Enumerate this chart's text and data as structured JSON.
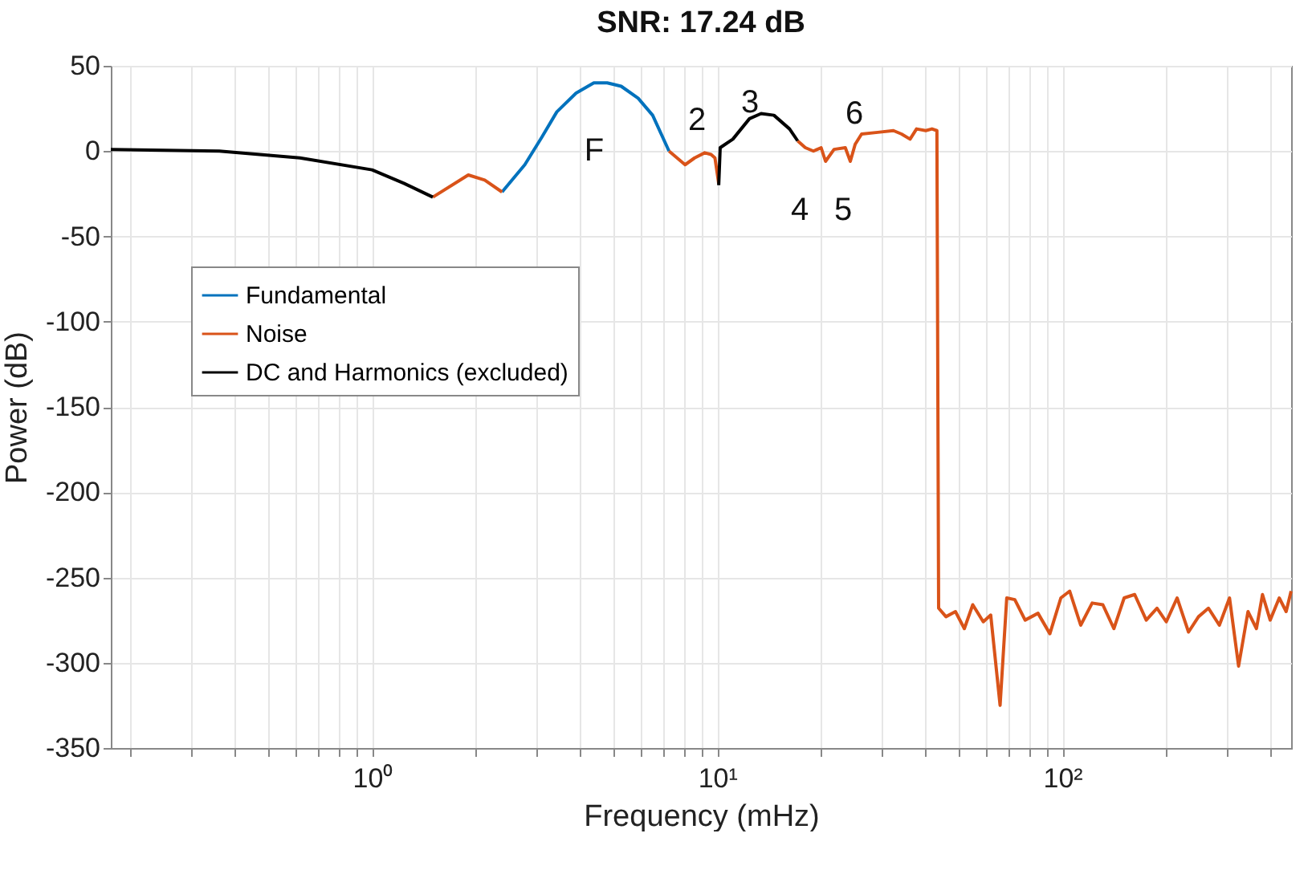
{
  "chart_data": {
    "type": "line",
    "title": "SNR:  17.24 dB",
    "xlabel": "Frequency (mHz)",
    "ylabel": "Power (dB)",
    "log": "x",
    "grid": true,
    "legend": "top left",
    "line_style": "solid",
    "marker": "none",
    "xlim": [
      0.175,
      460
    ],
    "ylim": [
      -350,
      50
    ],
    "xticks": [
      {
        "value": 0.2,
        "label": null
      },
      {
        "value": 0.3,
        "label": null
      },
      {
        "value": 0.4,
        "label": null
      },
      {
        "value": 0.5,
        "label": null
      },
      {
        "value": 0.6,
        "label": null
      },
      {
        "value": 0.7,
        "label": null
      },
      {
        "value": 0.8,
        "label": null
      },
      {
        "value": 0.9,
        "label": null
      },
      {
        "value": 1,
        "label": "10⁰"
      },
      {
        "value": 2,
        "label": null
      },
      {
        "value": 3,
        "label": null
      },
      {
        "value": 4,
        "label": null
      },
      {
        "value": 5,
        "label": null
      },
      {
        "value": 6,
        "label": null
      },
      {
        "value": 7,
        "label": null
      },
      {
        "value": 8,
        "label": null
      },
      {
        "value": 9,
        "label": null
      },
      {
        "value": 10,
        "label": "10¹"
      },
      {
        "value": 20,
        "label": null
      },
      {
        "value": 30,
        "label": null
      },
      {
        "value": 40,
        "label": null
      },
      {
        "value": 50,
        "label": null
      },
      {
        "value": 60,
        "label": null
      },
      {
        "value": 70,
        "label": null
      },
      {
        "value": 80,
        "label": null
      },
      {
        "value": 90,
        "label": null
      },
      {
        "value": 100,
        "label": "10²"
      },
      {
        "value": 200,
        "label": null
      },
      {
        "value": 300,
        "label": null
      },
      {
        "value": 400,
        "label": null
      }
    ],
    "yticks": [
      -350,
      -300,
      -250,
      -200,
      -150,
      -100,
      -50,
      0,
      50
    ],
    "annotations": [
      "F",
      "2",
      "3",
      "4",
      "5",
      "6"
    ],
    "series": [
      {
        "name": "Fundamental",
        "color": "#0072bd",
        "x": [
          2.38,
          2.77,
          3.1,
          3.43,
          3.9,
          4.39,
          4.8,
          5.27,
          5.9,
          6.5,
          7.25
        ],
        "values": [
          -24,
          -8,
          8,
          23,
          34,
          40,
          40,
          38,
          31,
          21,
          0
        ]
      },
      {
        "name": "Noise",
        "color": "#d95319",
        "x": [
          1.5,
          1.9,
          2.12,
          2.38,
          2.39,
          7.25,
          8.07,
          8.6,
          9.2,
          9.6,
          9.85,
          10.1,
          10.15,
          17.1,
          18.0,
          19.0,
          20.0,
          20.6,
          21.8,
          23.5,
          24.3,
          25.1,
          26.2,
          29.2,
          32.4,
          34.2,
          36.2,
          37.8,
          40.2,
          41.9,
          43.3,
          43.8,
          46,
          49,
          52,
          55,
          59,
          62,
          66,
          69,
          72.8,
          78,
          85,
          92,
          99,
          105,
          113,
          122,
          131,
          141,
          151,
          162,
          175,
          188,
          200,
          215,
          232,
          248,
          265,
          285,
          305,
          324,
          345,
          365,
          380,
          400,
          425,
          445,
          460
        ],
        "values": [
          -27,
          -14,
          -17,
          -24,
          null,
          0,
          -8,
          -4,
          -1,
          -2,
          -4,
          -19,
          null,
          6,
          2,
          0,
          2,
          -6,
          1,
          2,
          -6,
          4,
          10,
          11,
          12,
          10,
          7,
          13,
          12,
          13,
          12,
          -268,
          -273,
          -270,
          -280,
          -266,
          -276,
          -272,
          -325,
          -262,
          -263,
          -275,
          -271,
          -283,
          -262,
          -258,
          -278,
          -265,
          -266,
          -280,
          -262,
          -260,
          -275,
          -268,
          -276,
          -262,
          -282,
          -273,
          -268,
          -278,
          -262,
          -302,
          -270,
          -280,
          -260,
          -275,
          -262,
          -270,
          -258
        ]
      },
      {
        "name": "DC and Harmonics (excluded)",
        "color": "#000000",
        "x": [
          0.175,
          0.361,
          0.618,
          1.0,
          1.24,
          1.5,
          1.51,
          10.1,
          10.2,
          11.1,
          12.4,
          13.4,
          14.6,
          16.2,
          17.1
        ],
        "values": [
          1,
          0,
          -4,
          -11,
          -19,
          -27,
          null,
          -20,
          2,
          7,
          19,
          22,
          21,
          13,
          6
        ]
      }
    ]
  }
}
